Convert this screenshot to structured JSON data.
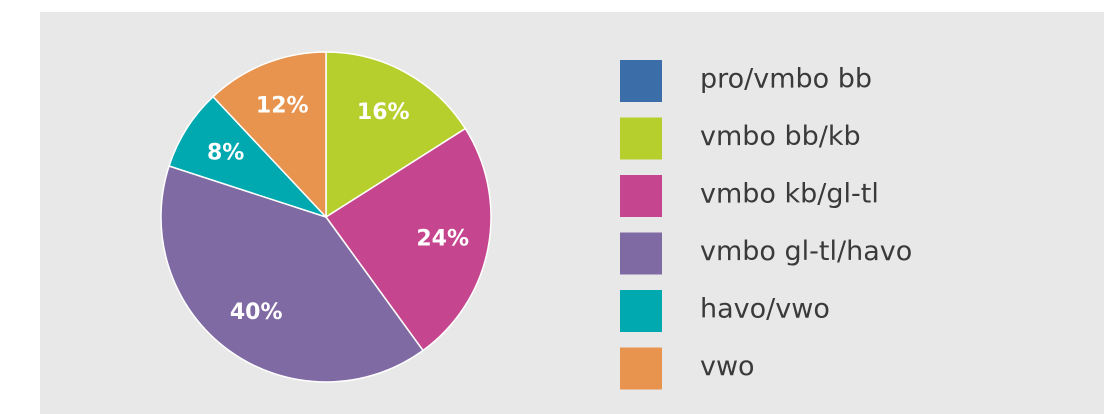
{
  "chart_data": {
    "type": "pie",
    "categories": [
      "pro/vmbo bb",
      "vmbo bb/kb",
      "vmbo kb/gl-tl",
      "vmbo gl-tl/havo",
      "havo/vwo",
      "vwo"
    ],
    "values": [
      0,
      16,
      24,
      40,
      8,
      12
    ],
    "value_labels": [
      null,
      "16%",
      "24%",
      "40%",
      "8%",
      "12%"
    ],
    "colors": [
      "#3b6ea8",
      "#b6cf2c",
      "#c5468e",
      "#7f6aa3",
      "#00a8b0",
      "#e8944f"
    ],
    "legend": "right"
  }
}
